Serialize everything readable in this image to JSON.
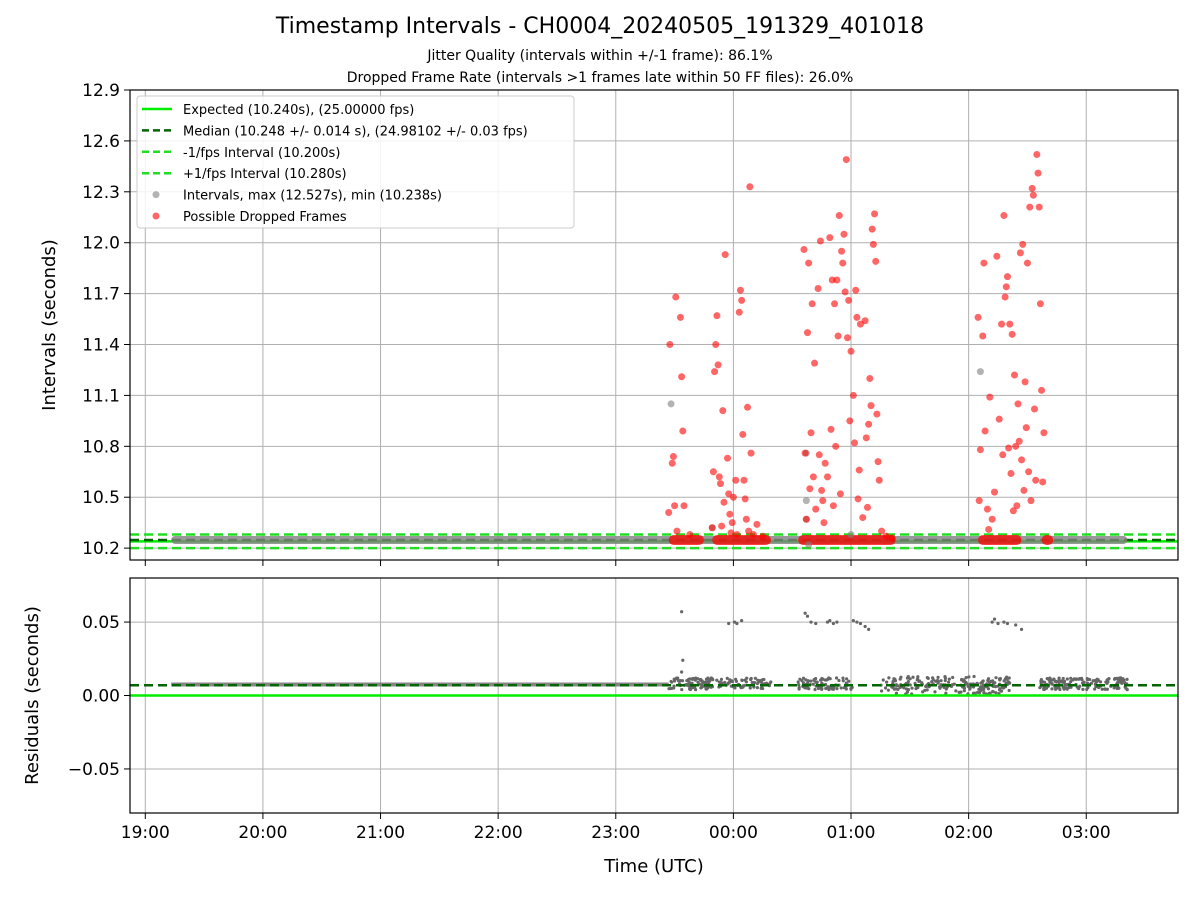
{
  "title": "Timestamp Intervals - CH0004_20240505_191329_401018",
  "subtitle_1": "Jitter Quality (intervals within +/-1 frame): 86.1%",
  "subtitle_2": "Dropped Frame Rate (intervals >1 frames late within 50 FF files): 26.0%",
  "colors": {
    "expected": "#00ee00",
    "median": "#006400",
    "fps_bound": "#22dd22",
    "intervals": "#808080",
    "dropped": "#ff0000",
    "grid": "#b0b0b0",
    "residual_points": "#666666"
  },
  "chart_data": [
    {
      "type": "scatter",
      "name": "intervals-panel",
      "ylabel": "Intervals (seconds)",
      "xlabel": "",
      "xlim": [
        18.87,
        27.78
      ],
      "ylim": [
        10.13,
        12.9
      ],
      "yticks": [
        10.2,
        10.5,
        10.8,
        11.1,
        11.4,
        11.7,
        12.0,
        12.3,
        12.6,
        12.9
      ],
      "ytick_labels": [
        "10.2",
        "10.5",
        "10.8",
        "11.1",
        "11.4",
        "11.7",
        "12.0",
        "12.3",
        "12.6",
        "12.9"
      ],
      "grid": true,
      "legend_position": "upper-left",
      "legend": [
        {
          "label": "Expected (10.240s), (25.00000 fps)",
          "style": "solid",
          "color_key": "expected"
        },
        {
          "label": "Median (10.248 +/- 0.014 s), (24.98102 +/- 0.03 fps)",
          "style": "dashed",
          "color_key": "median"
        },
        {
          "label": "-1/fps Interval (10.200s)",
          "style": "dashed",
          "color_key": "fps_bound"
        },
        {
          "label": "+1/fps Interval (10.280s)",
          "style": "dashed",
          "color_key": "fps_bound"
        },
        {
          "label": "Intervals, max (12.527s), min (10.238s)",
          "style": "dot",
          "color_key": "intervals"
        },
        {
          "label": "Possible Dropped Frames",
          "style": "dot",
          "color_key": "dropped"
        }
      ],
      "lines": [
        {
          "y": 10.24,
          "color_key": "expected",
          "style": "solid"
        },
        {
          "y": 10.248,
          "color_key": "median",
          "style": "dashed"
        },
        {
          "y": 10.2,
          "color_key": "fps_bound",
          "style": "dashed"
        },
        {
          "y": 10.28,
          "color_key": "fps_bound",
          "style": "dashed"
        }
      ],
      "baseline_band": {
        "x_start": 19.22,
        "x_end": 27.35,
        "y": 10.248
      },
      "dropped_bands": [
        {
          "x_start": 23.45,
          "x_end": 23.75,
          "y": 10.248
        },
        {
          "x_start": 23.82,
          "x_end": 24.32,
          "y": 10.248
        },
        {
          "x_start": 24.55,
          "x_end": 25.38,
          "y": 10.248
        },
        {
          "x_start": 26.08,
          "x_end": 26.45,
          "y": 10.248
        },
        {
          "x_start": 26.62,
          "x_end": 26.72,
          "y": 10.248
        }
      ],
      "interval_points": [
        [
          23.47,
          11.05
        ],
        [
          24.62,
          10.37
        ],
        [
          24.62,
          10.48
        ],
        [
          24.62,
          10.76
        ],
        [
          26.1,
          11.24
        ],
        [
          23.82,
          10.32
        ],
        [
          24.64,
          10.22
        ],
        [
          25.0,
          10.28
        ]
      ],
      "dropped_points": [
        [
          23.45,
          10.41
        ],
        [
          23.46,
          11.4
        ],
        [
          23.48,
          10.7
        ],
        [
          23.49,
          10.74
        ],
        [
          23.5,
          10.45
        ],
        [
          23.51,
          11.68
        ],
        [
          23.52,
          10.3
        ],
        [
          23.55,
          11.56
        ],
        [
          23.56,
          11.21
        ],
        [
          23.57,
          10.89
        ],
        [
          23.58,
          10.45
        ],
        [
          23.63,
          10.28
        ],
        [
          23.82,
          10.32
        ],
        [
          23.83,
          10.65
        ],
        [
          23.84,
          11.24
        ],
        [
          23.85,
          11.4
        ],
        [
          23.86,
          11.57
        ],
        [
          23.87,
          11.28
        ],
        [
          23.88,
          10.62
        ],
        [
          23.89,
          10.58
        ],
        [
          23.9,
          10.33
        ],
        [
          23.91,
          11.01
        ],
        [
          23.92,
          10.47
        ],
        [
          23.93,
          11.93
        ],
        [
          23.95,
          10.73
        ],
        [
          23.96,
          10.52
        ],
        [
          23.97,
          10.4
        ],
        [
          23.98,
          10.29
        ],
        [
          23.99,
          10.35
        ],
        [
          24.0,
          10.5
        ],
        [
          24.02,
          10.6
        ],
        [
          24.03,
          10.28
        ],
        [
          24.05,
          11.59
        ],
        [
          24.06,
          11.72
        ],
        [
          24.07,
          11.66
        ],
        [
          24.08,
          10.87
        ],
        [
          24.09,
          10.6
        ],
        [
          24.1,
          10.49
        ],
        [
          24.11,
          10.37
        ],
        [
          24.12,
          11.03
        ],
        [
          24.13,
          10.3
        ],
        [
          24.14,
          12.33
        ],
        [
          24.15,
          10.76
        ],
        [
          24.17,
          10.28
        ],
        [
          24.2,
          10.34
        ],
        [
          24.25,
          10.27
        ],
        [
          24.6,
          11.96
        ],
        [
          24.61,
          10.76
        ],
        [
          24.62,
          10.37
        ],
        [
          24.63,
          11.47
        ],
        [
          24.64,
          11.88
        ],
        [
          24.65,
          10.55
        ],
        [
          24.66,
          10.88
        ],
        [
          24.67,
          11.64
        ],
        [
          24.68,
          10.62
        ],
        [
          24.69,
          11.29
        ],
        [
          24.7,
          10.43
        ],
        [
          24.72,
          11.73
        ],
        [
          24.73,
          10.75
        ],
        [
          24.74,
          12.01
        ],
        [
          24.75,
          10.54
        ],
        [
          24.76,
          10.48
        ],
        [
          24.77,
          10.35
        ],
        [
          24.78,
          10.7
        ],
        [
          24.8,
          10.62
        ],
        [
          24.82,
          12.03
        ],
        [
          24.83,
          10.9
        ],
        [
          24.84,
          11.78
        ],
        [
          24.85,
          10.45
        ],
        [
          24.86,
          11.64
        ],
        [
          24.87,
          10.8
        ],
        [
          24.88,
          11.78
        ],
        [
          24.89,
          11.45
        ],
        [
          24.9,
          12.16
        ],
        [
          24.91,
          10.52
        ],
        [
          24.92,
          11.95
        ],
        [
          24.93,
          11.88
        ],
        [
          24.94,
          12.05
        ],
        [
          24.95,
          11.71
        ],
        [
          24.96,
          12.49
        ],
        [
          24.97,
          11.44
        ],
        [
          24.98,
          11.66
        ],
        [
          24.99,
          10.95
        ],
        [
          25.0,
          11.36
        ],
        [
          25.02,
          11.1
        ],
        [
          25.03,
          10.82
        ],
        [
          25.04,
          11.72
        ],
        [
          25.05,
          11.56
        ],
        [
          25.06,
          10.49
        ],
        [
          25.07,
          10.66
        ],
        [
          25.08,
          11.52
        ],
        [
          25.1,
          10.38
        ],
        [
          25.12,
          11.54
        ],
        [
          25.13,
          10.85
        ],
        [
          25.14,
          10.44
        ],
        [
          25.15,
          10.93
        ],
        [
          25.16,
          11.2
        ],
        [
          25.17,
          11.04
        ],
        [
          25.18,
          12.08
        ],
        [
          25.19,
          11.99
        ],
        [
          25.2,
          12.17
        ],
        [
          25.21,
          11.89
        ],
        [
          25.22,
          10.99
        ],
        [
          25.23,
          10.71
        ],
        [
          25.24,
          10.6
        ],
        [
          25.26,
          10.3
        ],
        [
          25.3,
          10.27
        ],
        [
          25.35,
          10.26
        ],
        [
          26.08,
          11.56
        ],
        [
          26.09,
          10.48
        ],
        [
          26.1,
          10.78
        ],
        [
          26.12,
          11.45
        ],
        [
          26.13,
          11.88
        ],
        [
          26.14,
          10.89
        ],
        [
          26.16,
          10.43
        ],
        [
          26.17,
          10.31
        ],
        [
          26.18,
          11.09
        ],
        [
          26.2,
          10.37
        ],
        [
          26.22,
          10.53
        ],
        [
          26.24,
          11.92
        ],
        [
          26.26,
          10.96
        ],
        [
          26.28,
          11.52
        ],
        [
          26.29,
          10.75
        ],
        [
          26.3,
          12.16
        ],
        [
          26.31,
          11.68
        ],
        [
          26.32,
          11.74
        ],
        [
          26.33,
          11.8
        ],
        [
          26.34,
          10.79
        ],
        [
          26.35,
          11.52
        ],
        [
          26.36,
          10.64
        ],
        [
          26.37,
          11.46
        ],
        [
          26.38,
          10.42
        ],
        [
          26.39,
          11.22
        ],
        [
          26.4,
          10.8
        ],
        [
          26.41,
          10.45
        ],
        [
          26.42,
          11.05
        ],
        [
          26.43,
          10.83
        ],
        [
          26.44,
          11.94
        ],
        [
          26.45,
          10.72
        ],
        [
          26.46,
          11.99
        ],
        [
          26.47,
          10.54
        ],
        [
          26.48,
          11.18
        ],
        [
          26.49,
          10.91
        ],
        [
          26.5,
          11.88
        ],
        [
          26.51,
          10.65
        ],
        [
          26.52,
          12.21
        ],
        [
          26.53,
          10.48
        ],
        [
          26.54,
          12.32
        ],
        [
          26.55,
          12.28
        ],
        [
          26.56,
          11.02
        ],
        [
          26.57,
          10.6
        ],
        [
          26.58,
          12.52
        ],
        [
          26.59,
          12.41
        ],
        [
          26.6,
          12.21
        ],
        [
          26.61,
          11.64
        ],
        [
          26.62,
          11.13
        ],
        [
          26.63,
          10.59
        ],
        [
          26.64,
          10.88
        ]
      ]
    },
    {
      "type": "scatter",
      "name": "residuals-panel",
      "ylabel": "Residuals (seconds)",
      "xlabel": "Time (UTC)",
      "xlim": [
        18.87,
        27.78
      ],
      "ylim": [
        -0.08,
        0.08
      ],
      "yticks": [
        -0.05,
        0.0,
        0.05
      ],
      "ytick_labels": [
        "−0.05",
        "0.00",
        "0.05"
      ],
      "xticks": [
        19,
        20,
        21,
        22,
        23,
        24,
        25,
        26,
        27
      ],
      "xtick_labels": [
        "19:00",
        "20:00",
        "21:00",
        "22:00",
        "23:00",
        "00:00",
        "01:00",
        "02:00",
        "03:00"
      ],
      "grid": true,
      "lines": [
        {
          "y": 0.0,
          "color_key": "expected",
          "style": "solid"
        },
        {
          "y": 0.007,
          "color_key": "median",
          "style": "dashed"
        }
      ],
      "baseline_band": {
        "x_start": 19.22,
        "x_end": 23.45,
        "y": 0.0075
      },
      "clusters": [
        {
          "x_start": 23.45,
          "x_end": 24.32,
          "y_center": 0.008,
          "spread": 0.004,
          "count": 140
        },
        {
          "x_start": 24.55,
          "x_end": 25.02,
          "y_center": 0.008,
          "spread": 0.004,
          "count": 80
        },
        {
          "x_start": 25.25,
          "x_end": 26.35,
          "y_center": 0.007,
          "spread": 0.006,
          "count": 200
        },
        {
          "x_start": 26.6,
          "x_end": 27.35,
          "y_center": 0.008,
          "spread": 0.004,
          "count": 150
        }
      ],
      "outliers": [
        [
          23.56,
          0.057
        ],
        [
          23.57,
          0.024
        ],
        [
          23.56,
          0.016
        ],
        [
          23.96,
          0.049
        ],
        [
          24.01,
          0.05
        ],
        [
          24.03,
          0.049
        ],
        [
          24.07,
          0.051
        ],
        [
          24.61,
          0.056
        ],
        [
          24.63,
          0.054
        ],
        [
          24.66,
          0.05
        ],
        [
          24.7,
          0.049
        ],
        [
          24.8,
          0.05
        ],
        [
          24.82,
          0.051
        ],
        [
          24.85,
          0.049
        ],
        [
          24.88,
          0.05
        ],
        [
          25.02,
          0.051
        ],
        [
          25.05,
          0.05
        ],
        [
          25.08,
          0.049
        ],
        [
          25.12,
          0.047
        ],
        [
          25.15,
          0.045
        ],
        [
          26.2,
          0.05
        ],
        [
          26.22,
          0.052
        ],
        [
          26.25,
          0.049
        ],
        [
          26.3,
          0.05
        ],
        [
          26.33,
          0.049
        ],
        [
          26.4,
          0.048
        ],
        [
          26.45,
          0.045
        ]
      ]
    }
  ]
}
